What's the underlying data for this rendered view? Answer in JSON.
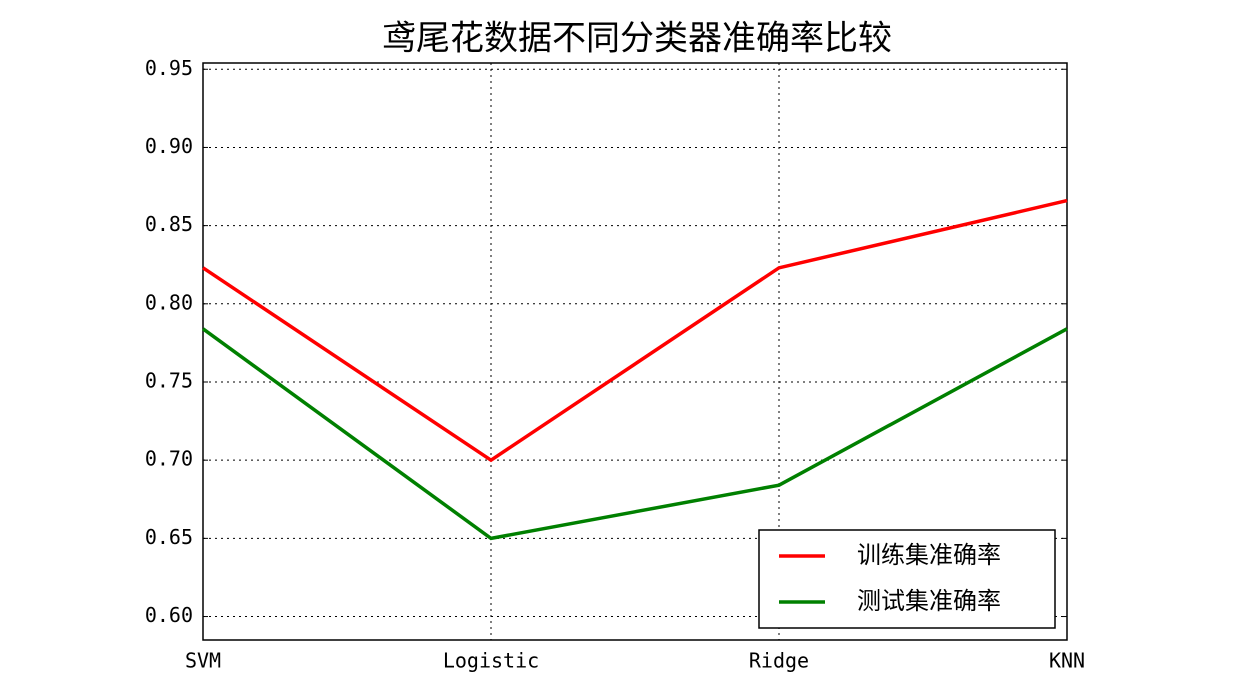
{
  "chart_data": {
    "type": "line",
    "title": "鸢尾花数据不同分类器准确率比较",
    "categories": [
      "SVM",
      "Logistic",
      "Ridge",
      "KNN"
    ],
    "series": [
      {
        "name": "训练集准确率",
        "color": "#ff0000",
        "values": [
          0.823,
          0.7,
          0.823,
          0.866
        ]
      },
      {
        "name": "测试集准确率",
        "color": "#008000",
        "values": [
          0.784,
          0.65,
          0.684,
          0.784
        ]
      }
    ],
    "ylim": [
      0.585,
      0.954
    ],
    "yticks": [
      {
        "value": 0.6,
        "label": "0.60"
      },
      {
        "value": 0.65,
        "label": "0.65"
      },
      {
        "value": 0.7,
        "label": "0.70"
      },
      {
        "value": 0.75,
        "label": "0.75"
      },
      {
        "value": 0.8,
        "label": "0.80"
      },
      {
        "value": 0.85,
        "label": "0.85"
      },
      {
        "value": 0.9,
        "label": "0.90"
      },
      {
        "value": 0.95,
        "label": "0.95"
      }
    ],
    "grid": true,
    "legend": "lower right"
  }
}
